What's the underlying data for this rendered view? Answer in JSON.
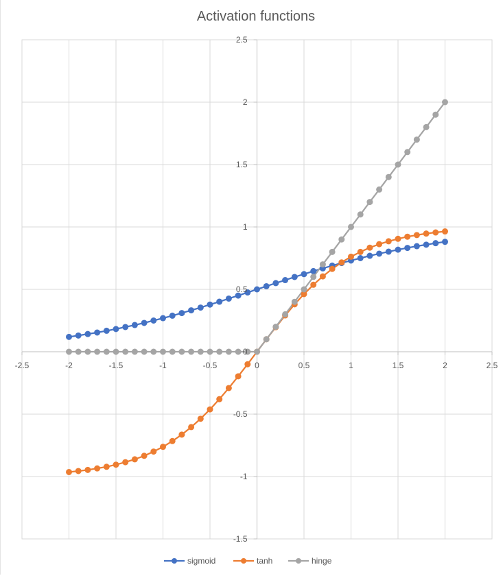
{
  "chart_data": {
    "type": "line",
    "title": "Activation functions",
    "xlabel": "",
    "ylabel": "",
    "xlim": [
      -2.5,
      2.5
    ],
    "ylim": [
      -1.5,
      2.5
    ],
    "x_ticks": [
      "-2.5",
      "-2",
      "-1.5",
      "-1",
      "-0.5",
      "0",
      "0.5",
      "1",
      "1.5",
      "2",
      "2.5"
    ],
    "y_ticks": [
      "-1.5",
      "-1",
      "-0.5",
      "0",
      "0.5",
      "1",
      "1.5",
      "2",
      "2.5"
    ],
    "grid": true,
    "legend_position": "bottom",
    "x": [
      -2.0,
      -1.9,
      -1.8,
      -1.7,
      -1.6,
      -1.5,
      -1.4,
      -1.3,
      -1.2,
      -1.1,
      -1.0,
      -0.9,
      -0.8,
      -0.7,
      -0.6,
      -0.5,
      -0.4,
      -0.3,
      -0.2,
      -0.1,
      0.0,
      0.1,
      0.2,
      0.3,
      0.4,
      0.5,
      0.6,
      0.7,
      0.8,
      0.9,
      1.0,
      1.1,
      1.2,
      1.3,
      1.4,
      1.5,
      1.6,
      1.7,
      1.8,
      1.9,
      2.0
    ],
    "series": [
      {
        "name": "sigmoid",
        "color": "#4472C4",
        "values": [
          0.119,
          0.13,
          0.142,
          0.154,
          0.168,
          0.182,
          0.198,
          0.214,
          0.231,
          0.25,
          0.269,
          0.289,
          0.31,
          0.332,
          0.354,
          0.378,
          0.401,
          0.426,
          0.45,
          0.475,
          0.5,
          0.525,
          0.55,
          0.574,
          0.599,
          0.622,
          0.646,
          0.668,
          0.69,
          0.711,
          0.731,
          0.75,
          0.769,
          0.786,
          0.802,
          0.818,
          0.832,
          0.846,
          0.858,
          0.87,
          0.881
        ]
      },
      {
        "name": "tanh",
        "color": "#ED7D31",
        "values": [
          -0.964,
          -0.956,
          -0.947,
          -0.935,
          -0.922,
          -0.905,
          -0.885,
          -0.862,
          -0.834,
          -0.8,
          -0.762,
          -0.716,
          -0.664,
          -0.604,
          -0.537,
          -0.462,
          -0.38,
          -0.291,
          -0.197,
          -0.1,
          0.0,
          0.1,
          0.197,
          0.291,
          0.38,
          0.462,
          0.537,
          0.604,
          0.664,
          0.716,
          0.762,
          0.8,
          0.834,
          0.862,
          0.885,
          0.905,
          0.922,
          0.935,
          0.947,
          0.956,
          0.964
        ]
      },
      {
        "name": "hinge",
        "color": "#A5A5A5",
        "values": [
          0,
          0,
          0,
          0,
          0,
          0,
          0,
          0,
          0,
          0,
          0,
          0,
          0,
          0,
          0,
          0,
          0,
          0,
          0,
          0,
          0,
          0.1,
          0.2,
          0.3,
          0.4,
          0.5,
          0.6,
          0.7,
          0.8,
          0.9,
          1.0,
          1.1,
          1.2,
          1.3,
          1.4,
          1.5,
          1.6,
          1.7,
          1.8,
          1.9,
          2.0
        ]
      }
    ]
  }
}
